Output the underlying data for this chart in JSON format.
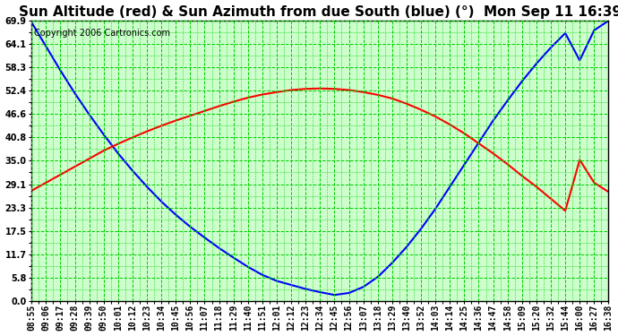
{
  "title": "Sun Altitude (red) & Sun Azimuth from due South (blue) (°)  Mon Sep 11 16:39",
  "copyright": "Copyright 2006 Cartronics.com",
  "background_color": "#ccffcc",
  "grid_color": "#00cc00",
  "yticks": [
    0.0,
    5.8,
    11.7,
    17.5,
    23.3,
    29.1,
    35.0,
    40.8,
    46.6,
    52.4,
    58.3,
    64.1,
    69.9
  ],
  "ylim": [
    0.0,
    69.9
  ],
  "x_labels": [
    "08:55",
    "09:06",
    "09:17",
    "09:28",
    "09:39",
    "09:50",
    "10:01",
    "10:12",
    "10:23",
    "10:34",
    "10:45",
    "10:56",
    "11:07",
    "11:18",
    "11:29",
    "11:40",
    "11:51",
    "12:01",
    "12:12",
    "12:23",
    "12:34",
    "12:45",
    "12:56",
    "13:07",
    "13:18",
    "13:29",
    "13:40",
    "13:52",
    "14:03",
    "14:14",
    "14:25",
    "14:36",
    "14:47",
    "14:58",
    "15:09",
    "15:20",
    "15:32",
    "15:44",
    "16:00",
    "16:27",
    "16:38"
  ],
  "altitude_values": [
    27.5,
    29.5,
    31.5,
    33.5,
    35.5,
    37.5,
    39.2,
    40.8,
    42.3,
    43.7,
    45.0,
    46.2,
    47.4,
    48.6,
    49.7,
    50.7,
    51.5,
    52.1,
    52.6,
    52.9,
    53.0,
    52.9,
    52.6,
    52.1,
    51.4,
    50.5,
    49.2,
    47.7,
    46.0,
    44.0,
    41.8,
    39.3,
    36.8,
    34.1,
    31.2,
    28.5,
    25.5,
    22.5,
    35.2,
    29.5,
    27.2
  ],
  "azimuth_values": [
    69.5,
    63.5,
    57.5,
    51.8,
    46.5,
    41.5,
    36.8,
    32.5,
    28.5,
    24.8,
    21.5,
    18.5,
    15.8,
    13.2,
    10.8,
    8.5,
    6.5,
    5.0,
    4.0,
    3.0,
    2.2,
    1.5,
    2.0,
    3.5,
    6.0,
    9.5,
    13.5,
    18.0,
    23.0,
    28.5,
    34.0,
    39.5,
    45.0,
    50.0,
    54.8,
    59.2,
    63.2,
    66.8,
    60.0,
    67.5,
    69.9
  ],
  "altitude_color": "red",
  "azimuth_color": "blue",
  "title_fontsize": 11,
  "copyright_fontsize": 7,
  "tick_fontsize": 7,
  "linewidth": 1.5
}
